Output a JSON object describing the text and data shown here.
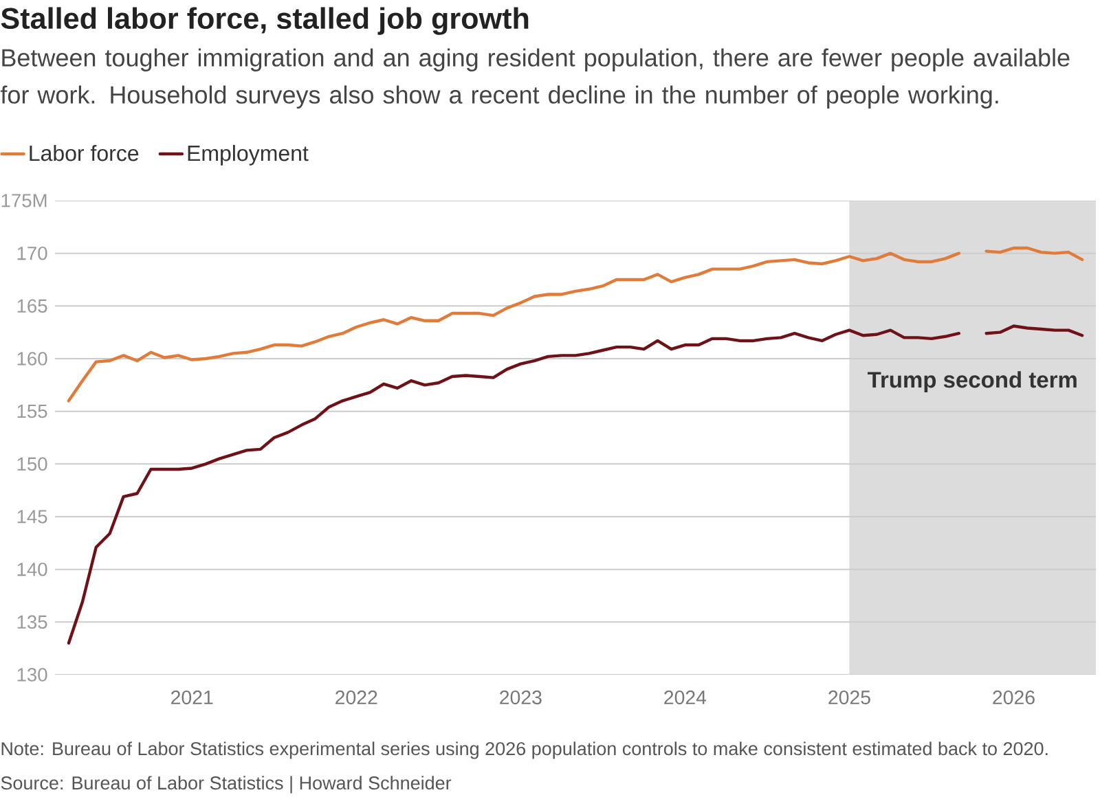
{
  "chart_data": {
    "type": "line",
    "title": "Stalled labor force, stalled job growth",
    "subtitle": "Between tougher immigration and an aging resident population, there are fewer people available for work. Household surveys also show a recent decline in the number of people working.",
    "annotations": [
      "Note: Bureau of Labor Statistics experimental series using 2026 population controls to make consistent estimated back to 2020.",
      "Source: Bureau of Labor Statistics | Howard Schneider"
    ],
    "x": [
      "2020-04",
      "2020-05",
      "2020-06",
      "2020-07",
      "2020-08",
      "2020-09",
      "2020-10",
      "2020-11",
      "2020-12",
      "2021-01",
      "2021-02",
      "2021-03",
      "2021-04",
      "2021-05",
      "2021-06",
      "2021-07",
      "2021-08",
      "2021-09",
      "2021-10",
      "2021-11",
      "2021-12",
      "2022-01",
      "2022-02",
      "2022-03",
      "2022-04",
      "2022-05",
      "2022-06",
      "2022-07",
      "2022-08",
      "2022-09",
      "2022-10",
      "2022-11",
      "2022-12",
      "2023-01",
      "2023-02",
      "2023-03",
      "2023-04",
      "2023-05",
      "2023-06",
      "2023-07",
      "2023-08",
      "2023-09",
      "2023-10",
      "2023-11",
      "2023-12",
      "2024-01",
      "2024-02",
      "2024-03",
      "2024-04",
      "2024-05",
      "2024-06",
      "2024-07",
      "2024-08",
      "2024-09",
      "2024-10",
      "2024-11",
      "2024-12",
      "2025-01",
      "2025-02",
      "2025-03",
      "2025-04",
      "2025-05",
      "2025-06",
      "2025-07",
      "2025-08",
      "2025-09",
      "2025-10",
      "2025-11",
      "2025-12",
      "2026-01",
      "2026-02",
      "2026-03",
      "2026-04",
      "2026-05",
      "2026-06"
    ],
    "series": [
      {
        "name": "Labor force",
        "color": "#e07b39",
        "values": [
          156.0,
          157.9,
          159.7,
          159.8,
          160.3,
          159.8,
          160.6,
          160.1,
          160.3,
          159.9,
          160.0,
          160.2,
          160.5,
          160.6,
          160.9,
          161.3,
          161.3,
          161.2,
          161.6,
          162.1,
          162.4,
          163.0,
          163.4,
          163.7,
          163.3,
          163.9,
          163.6,
          163.6,
          164.3,
          164.3,
          164.3,
          164.1,
          164.8,
          165.3,
          165.9,
          166.1,
          166.1,
          166.4,
          166.6,
          166.9,
          167.5,
          167.5,
          167.5,
          168.0,
          167.3,
          167.7,
          168.0,
          168.5,
          168.5,
          168.5,
          168.8,
          169.2,
          169.3,
          169.4,
          169.1,
          169.0,
          169.3,
          169.7,
          169.3,
          169.5,
          170.0,
          169.4,
          169.2,
          169.2,
          169.5,
          170.0,
          null,
          170.2,
          170.1,
          170.5,
          170.5,
          170.1,
          170.0,
          170.1,
          169.4
        ]
      },
      {
        "name": "Employment",
        "color": "#6f1217",
        "values": [
          133.0,
          136.9,
          142.1,
          143.4,
          146.9,
          147.2,
          149.5,
          149.5,
          149.5,
          149.6,
          150.0,
          150.5,
          150.9,
          151.3,
          151.4,
          152.5,
          153.0,
          153.7,
          154.3,
          155.4,
          156.0,
          156.4,
          156.8,
          157.6,
          157.2,
          157.9,
          157.5,
          157.7,
          158.3,
          158.4,
          158.3,
          158.2,
          159.0,
          159.5,
          159.8,
          160.2,
          160.3,
          160.3,
          160.5,
          160.8,
          161.1,
          161.1,
          160.9,
          161.7,
          160.9,
          161.3,
          161.3,
          161.9,
          161.9,
          161.7,
          161.7,
          161.9,
          162.0,
          162.4,
          162.0,
          161.7,
          162.3,
          162.7,
          162.2,
          162.3,
          162.7,
          162.0,
          162.0,
          161.9,
          162.1,
          162.4,
          null,
          162.4,
          162.5,
          163.1,
          162.9,
          162.8,
          162.7,
          162.7,
          162.2
        ]
      }
    ],
    "xlim": [
      "2020-03",
      "2026-07"
    ],
    "xticks": [
      {
        "value": "2021",
        "label": "2021"
      },
      {
        "value": "2022",
        "label": "2022"
      },
      {
        "value": "2023",
        "label": "2023"
      },
      {
        "value": "2024",
        "label": "2024"
      },
      {
        "value": "2025",
        "label": "2025"
      },
      {
        "value": "2026",
        "label": "2026"
      }
    ],
    "ylim": [
      130,
      175
    ],
    "yticks": [
      130,
      135,
      140,
      145,
      150,
      155,
      160,
      165,
      170,
      {
        "value": 175,
        "label": "175M"
      }
    ],
    "bands": [
      {
        "axis": "x",
        "from": "2025-01",
        "to": "2026-07",
        "label": "Trump second term",
        "color": "#dcdcdc"
      }
    ],
    "grid": "y",
    "legend": "top left",
    "line_style": "solid"
  }
}
